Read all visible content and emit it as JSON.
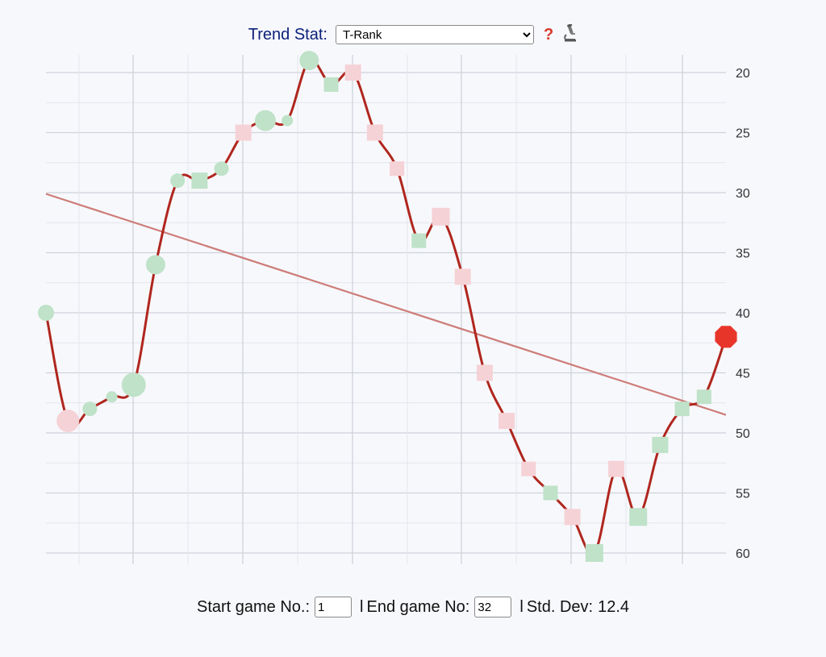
{
  "header": {
    "trend_label": "Trend Stat",
    "colon": ":",
    "selected_stat": "T-Rank",
    "help_symbol": "?"
  },
  "footer": {
    "start_label": "Start game No.:",
    "start_value": "1",
    "separator": "l",
    "end_label": "End game No:",
    "end_value": "32",
    "stddev_label": "Std. Dev:",
    "stddev_value": "12.4"
  },
  "colors": {
    "line": "#b0261e",
    "trend": "#cd7c78",
    "good_fill": "#bfe2c8",
    "bad_fill": "#f5d2d6",
    "latest": "#e8352a",
    "grid_major": "#cfd2da",
    "grid_minor": "#e4e6ec"
  },
  "chart_data": {
    "type": "line",
    "y_axis": "reversed",
    "ylim": [
      61,
      19
    ],
    "yticks": [
      20,
      25,
      30,
      35,
      40,
      45,
      50,
      55,
      60
    ],
    "x": [
      1,
      2,
      3,
      4,
      5,
      6,
      7,
      8,
      9,
      10,
      11,
      12,
      13,
      14,
      15,
      16,
      17,
      18,
      19,
      20,
      21,
      22,
      23,
      24,
      25,
      26,
      27,
      28,
      29,
      30,
      31,
      32
    ],
    "values": [
      40,
      49,
      48,
      47,
      46,
      36,
      29,
      29,
      28,
      25,
      24,
      24,
      19,
      21,
      20,
      25,
      28,
      34,
      32,
      37,
      45,
      49,
      53,
      55,
      57,
      60,
      53,
      57,
      51,
      48,
      47,
      42
    ],
    "markers": [
      "circle",
      "circle",
      "circle",
      "circle",
      "circle",
      "circle",
      "circle",
      "square",
      "circle",
      "square",
      "circle",
      "circle",
      "circle",
      "square",
      "square",
      "square",
      "square",
      "square",
      "square",
      "square",
      "square",
      "square",
      "square",
      "square",
      "square",
      "square",
      "square",
      "square",
      "square",
      "square",
      "square",
      "octagon"
    ],
    "sizes": [
      1,
      1.4,
      0.9,
      0.7,
      1.5,
      1.2,
      0.9,
      1,
      0.9,
      1,
      1.3,
      0.7,
      1.2,
      0.9,
      1,
      1,
      0.9,
      0.9,
      1.1,
      1,
      1,
      1,
      0.9,
      0.9,
      1,
      1.1,
      1,
      1.1,
      1,
      0.9,
      0.9,
      1.4
    ],
    "colors": [
      "good",
      "bad",
      "good",
      "good",
      "good",
      "good",
      "good",
      "good",
      "good",
      "bad",
      "good",
      "good",
      "good",
      "good",
      "bad",
      "bad",
      "bad",
      "good",
      "bad",
      "bad",
      "bad",
      "bad",
      "bad",
      "good",
      "bad",
      "good",
      "bad",
      "good",
      "good",
      "good",
      "good",
      "latest"
    ],
    "trendline": {
      "start": 30.1,
      "end": 48.5
    },
    "grid": true
  }
}
